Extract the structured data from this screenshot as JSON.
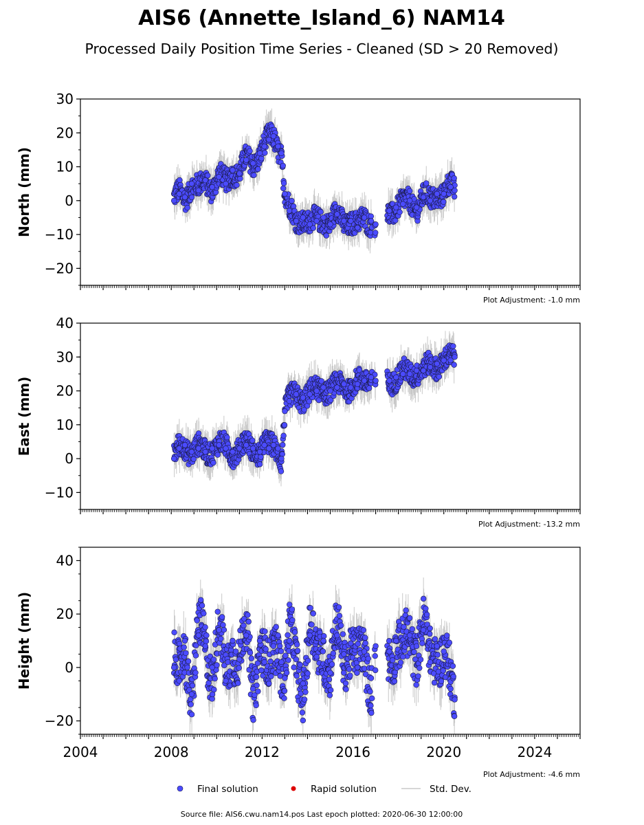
{
  "title": "AIS6 (Annette_Island_6) NAM14",
  "subtitle": "Processed Daily Position Time Series - Cleaned (SD > 20 Removed)",
  "colors": {
    "final": "#4b4bff",
    "rapid": "#dd0000",
    "stddev": "#c8c8c8",
    "marker_edge": "#1a1a44"
  },
  "legend": {
    "placement": "bottom-center",
    "final_label": "Final solution",
    "rapid_label": "Rapid solution",
    "sd_label": "Std. Dev."
  },
  "footer": {
    "source": "Source file: AIS6.cwu.nam14.pos  Last epoch plotted: 2020-06-30 12:00:00"
  },
  "chart_data": [
    {
      "type": "scatter",
      "ylabel": "North (mm)",
      "adjustment": "Plot Adjustment: -1.0 mm",
      "xlim": [
        2004,
        2026
      ],
      "ylim": [
        -25,
        30
      ],
      "yticks": [
        -20,
        -10,
        0,
        10,
        20,
        30
      ],
      "ytick_labels": [
        "−20",
        "−10",
        "0",
        "10",
        "20",
        "30"
      ],
      "xticks": [
        2004,
        2008,
        2012,
        2016,
        2020,
        2024
      ],
      "xtick_labels": [
        "",
        "",
        "",
        "",
        "",
        ""
      ],
      "grid": false,
      "series": [
        {
          "name": "Final solution",
          "x": [
            2008.12,
            2008.35,
            2008.6,
            2008.9,
            2009.2,
            2009.5,
            2009.8,
            2010.1,
            2010.4,
            2010.7,
            2011.0,
            2011.3,
            2011.6,
            2011.9,
            2012.1,
            2012.3,
            2012.5,
            2012.7,
            2012.85,
            2013.0,
            2013.2,
            2013.5,
            2013.8,
            2014.1,
            2014.4,
            2014.7,
            2015.0,
            2015.3,
            2015.6,
            2015.9,
            2016.2,
            2016.5,
            2016.8,
            2017.0,
            2017.6,
            2017.9,
            2018.2,
            2018.5,
            2018.8,
            2019.1,
            2019.4,
            2019.7,
            2020.0,
            2020.3,
            2020.48
          ],
          "y": [
            0,
            2,
            1,
            5,
            3,
            6,
            4,
            7,
            5,
            9,
            8,
            12,
            11,
            14,
            16,
            18,
            19,
            16,
            14,
            2,
            -3,
            -6,
            -5,
            -7,
            -6,
            -5,
            -7,
            -4,
            -6,
            -6,
            -8,
            -5,
            -6,
            -7,
            -3,
            -2,
            -1,
            0,
            -2,
            1,
            0,
            2,
            2,
            4,
            3
          ]
        },
        {
          "name": "Rapid solution",
          "x": [],
          "y": []
        }
      ]
    },
    {
      "type": "scatter",
      "ylabel": "East (mm)",
      "adjustment": "Plot Adjustment: -13.2 mm",
      "xlim": [
        2004,
        2026
      ],
      "ylim": [
        -15,
        40
      ],
      "yticks": [
        -10,
        0,
        10,
        20,
        30,
        40
      ],
      "ytick_labels": [
        "−10",
        "0",
        "10",
        "20",
        "30",
        "40"
      ],
      "xticks": [
        2004,
        2008,
        2012,
        2016,
        2020,
        2024
      ],
      "xtick_labels": [
        "",
        "",
        "",
        "",
        "",
        ""
      ],
      "grid": false,
      "series": [
        {
          "name": "Final solution",
          "x": [
            2008.12,
            2008.35,
            2008.6,
            2008.9,
            2009.2,
            2009.5,
            2009.8,
            2010.1,
            2010.4,
            2010.7,
            2011.0,
            2011.3,
            2011.6,
            2011.9,
            2012.1,
            2012.3,
            2012.5,
            2012.7,
            2012.85,
            2013.0,
            2013.2,
            2013.5,
            2013.8,
            2014.1,
            2014.4,
            2014.7,
            2015.0,
            2015.3,
            2015.6,
            2015.9,
            2016.2,
            2016.5,
            2016.8,
            2017.0,
            2017.6,
            2017.9,
            2018.2,
            2018.5,
            2018.8,
            2019.1,
            2019.4,
            2019.7,
            2020.0,
            2020.3,
            2020.48
          ],
          "y": [
            0,
            3,
            4,
            2,
            3,
            2,
            3,
            4,
            3,
            2,
            3,
            4,
            3,
            2,
            4,
            3,
            4,
            3,
            0,
            14,
            17,
            19,
            18,
            19,
            20,
            21,
            20,
            21,
            22,
            21,
            22,
            23,
            24,
            23,
            23,
            24,
            25,
            25,
            26,
            26,
            27,
            28,
            29,
            29,
            30
          ]
        },
        {
          "name": "Rapid solution",
          "x": [],
          "y": []
        }
      ]
    },
    {
      "type": "scatter",
      "xlabel": "",
      "ylabel": "Height (mm)",
      "adjustment": "Plot Adjustment: -4.6 mm",
      "xlim": [
        2004,
        2026
      ],
      "ylim": [
        -25,
        45
      ],
      "yticks": [
        -20,
        0,
        20,
        40
      ],
      "ytick_labels": [
        "−20",
        "0",
        "20",
        "40"
      ],
      "xticks": [
        2004,
        2008,
        2012,
        2016,
        2020,
        2024
      ],
      "xtick_labels": [
        "2004",
        "2008",
        "2012",
        "2016",
        "2020",
        "2024"
      ],
      "grid": false,
      "series": [
        {
          "name": "Final solution",
          "x": [
            2008.12,
            2008.35,
            2008.6,
            2008.9,
            2009.2,
            2009.5,
            2009.8,
            2010.1,
            2010.4,
            2010.7,
            2011.0,
            2011.3,
            2011.6,
            2011.9,
            2012.1,
            2012.3,
            2012.5,
            2012.7,
            2012.85,
            2013.0,
            2013.2,
            2013.5,
            2013.8,
            2014.1,
            2014.4,
            2014.7,
            2015.0,
            2015.3,
            2015.6,
            2015.9,
            2016.2,
            2016.5,
            2016.8,
            2017.0,
            2017.6,
            2017.9,
            2018.2,
            2018.5,
            2018.8,
            2019.1,
            2019.4,
            2019.7,
            2020.0,
            2020.3,
            2020.48
          ],
          "y": [
            0,
            -5,
            10,
            -10,
            12,
            8,
            0,
            14,
            -5,
            10,
            3,
            12,
            -8,
            10,
            2,
            -6,
            8,
            12,
            2,
            -4,
            10,
            3,
            -6,
            12,
            4,
            10,
            -2,
            12,
            5,
            9,
            0,
            6,
            -4,
            8,
            6,
            10,
            4,
            12,
            8,
            14,
            2,
            8,
            6,
            -8,
            -12
          ]
        },
        {
          "name": "Rapid solution",
          "x": [],
          "y": []
        }
      ]
    }
  ]
}
